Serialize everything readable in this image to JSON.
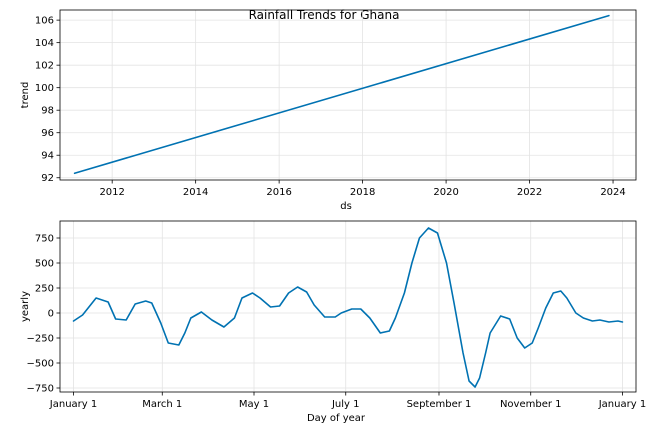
{
  "title": "Rainfall Trends for Ghana",
  "colors": {
    "line": "#0072B2",
    "grid": "#e3e3e3",
    "axis": "#000000"
  },
  "chart_data": [
    {
      "type": "line",
      "xlabel": "ds",
      "ylabel": "trend",
      "grid": true,
      "xlim": [
        2010.75,
        2024.55
      ],
      "ylim": [
        91.8,
        106.9
      ],
      "xticks": [
        2012,
        2014,
        2016,
        2018,
        2020,
        2022,
        2024
      ],
      "xtick_labels": [
        "2012",
        "2014",
        "2016",
        "2018",
        "2020",
        "2022",
        "2024"
      ],
      "yticks": [
        92,
        94,
        96,
        98,
        100,
        102,
        104,
        106
      ],
      "ytick_labels": [
        "92",
        "94",
        "96",
        "98",
        "100",
        "102",
        "104",
        "106"
      ],
      "series": [
        {
          "x": [
            2011.1,
            2023.9
          ],
          "y": [
            92.4,
            106.4
          ]
        }
      ]
    },
    {
      "type": "line",
      "xlabel": "Day of year",
      "ylabel": "yearly",
      "grid": true,
      "xlim": [
        -9,
        374
      ],
      "ylim": [
        -790,
        920
      ],
      "xticks": [
        0,
        59,
        120,
        181,
        243,
        304,
        365
      ],
      "xtick_labels": [
        "January 1",
        "March 1",
        "May 1",
        "July 1",
        "September 1",
        "November 1",
        "January 1"
      ],
      "yticks": [
        -750,
        -500,
        -250,
        0,
        250,
        500,
        750
      ],
      "ytick_labels": [
        "−750",
        "−500",
        "−250",
        "0",
        "250",
        "500",
        "750"
      ],
      "series": [
        {
          "x": [
            0,
            6,
            15,
            23,
            28,
            35,
            41,
            48,
            52,
            58,
            63,
            70,
            74,
            78,
            85,
            92,
            100,
            107,
            112,
            119,
            124,
            131,
            137,
            143,
            149,
            155,
            160,
            167,
            174,
            178,
            185,
            191,
            197,
            204,
            210,
            214,
            220,
            225,
            230,
            236,
            242,
            248,
            253,
            259,
            263,
            267,
            270,
            274,
            277,
            284,
            290,
            295,
            300,
            305,
            309,
            314,
            319,
            324,
            328,
            334,
            339,
            345,
            350,
            356,
            362,
            365
          ],
          "y": [
            -80,
            -20,
            150,
            110,
            -60,
            -70,
            90,
            120,
            100,
            -100,
            -300,
            -320,
            -200,
            -50,
            10,
            -70,
            -140,
            -50,
            150,
            200,
            150,
            60,
            70,
            200,
            260,
            210,
            80,
            -40,
            -40,
            0,
            40,
            40,
            -50,
            -200,
            -180,
            -50,
            200,
            500,
            750,
            850,
            800,
            500,
            100,
            -400,
            -680,
            -740,
            -650,
            -400,
            -200,
            -30,
            -60,
            -250,
            -350,
            -300,
            -150,
            50,
            200,
            220,
            150,
            0,
            -50,
            -80,
            -70,
            -90,
            -80,
            -90
          ]
        }
      ]
    }
  ]
}
